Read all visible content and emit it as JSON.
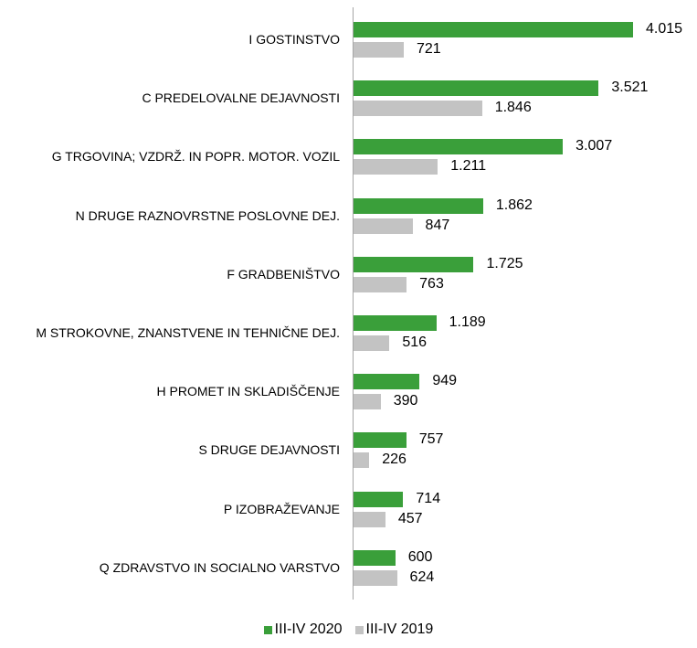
{
  "chart_data": {
    "type": "bar",
    "orientation": "horizontal",
    "categories": [
      "I GOSTINSTVO",
      "C PREDELOVALNE DEJAVNOSTI",
      "G TRGOVINA; VZDRŽ. IN POPR. MOTOR. VOZIL",
      "N DRUGE RAZNOVRSTNE POSLOVNE DEJ.",
      "F GRADBENIŠTVO",
      "M STROKOVNE, ZNANSTVENE IN TEHNIČNE DEJ.",
      "H PROMET IN SKLADIŠČENJE",
      "S DRUGE DEJAVNOSTI",
      "P IZOBRAŽEVANJE",
      "Q ZDRAVSTVO IN SOCIALNO VARSTVO"
    ],
    "series": [
      {
        "name": "III-IV 2020",
        "color": "#3a9f3a",
        "values": [
          4015,
          3521,
          3007,
          1862,
          1725,
          1189,
          949,
          757,
          714,
          600
        ],
        "value_labels": [
          "4.015",
          "3.521",
          "3.007",
          "1.862",
          "1.725",
          "1.189",
          "949",
          "757",
          "714",
          "600"
        ]
      },
      {
        "name": "III-IV 2019",
        "color": "#c3c3c3",
        "values": [
          721,
          1846,
          1211,
          847,
          763,
          516,
          390,
          226,
          457,
          624
        ],
        "value_labels": [
          "721",
          "1.846",
          "1.211",
          "847",
          "763",
          "516",
          "390",
          "226",
          "457",
          "624"
        ]
      }
    ],
    "legend": "bottom"
  }
}
